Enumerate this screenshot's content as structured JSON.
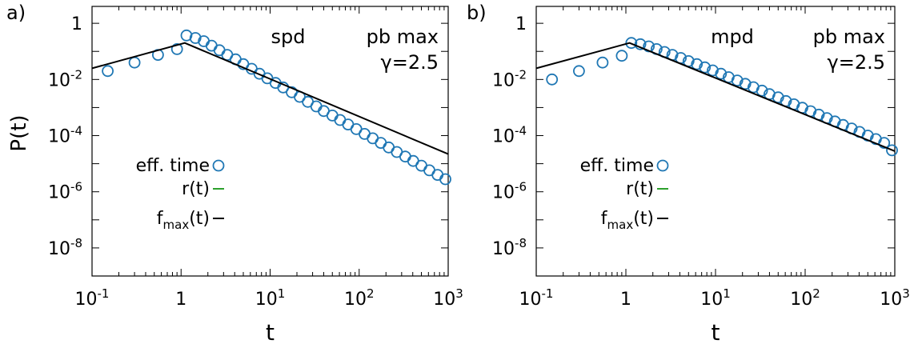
{
  "figure": {
    "panels": [
      {
        "panel_label": "a)",
        "inset_label": "spd",
        "model_label": "pb max",
        "gamma_label": "γ=2.5"
      },
      {
        "panel_label": "b)",
        "inset_label": "mpd",
        "model_label": "pb max",
        "gamma_label": "γ=2.5"
      }
    ]
  },
  "chart_data": [
    {
      "type": "scatter",
      "title": "",
      "xlabel": "t",
      "ylabel": "P(t)",
      "xscale": "log",
      "yscale": "log",
      "xlim": [
        0.1,
        1000
      ],
      "ylim": [
        1e-09,
        4
      ],
      "x_ticks": [
        {
          "base": "10",
          "exp": "-1"
        },
        {
          "base": "1",
          "exp": ""
        },
        {
          "base": "10",
          "exp": "1"
        },
        {
          "base": "10",
          "exp": "2"
        },
        {
          "base": "10",
          "exp": "3"
        }
      ],
      "y_ticks": [
        {
          "base": "1",
          "exp": ""
        },
        {
          "base": "10",
          "exp": "-2"
        },
        {
          "base": "10",
          "exp": "-4"
        },
        {
          "base": "10",
          "exp": "-6"
        },
        {
          "base": "10",
          "exp": "-8"
        }
      ],
      "legend_position": "left",
      "legend": [
        {
          "label": "eff. time",
          "sub": "",
          "rest": "",
          "kind": "circle",
          "color": "#1f77b4"
        },
        {
          "label": "r(t)",
          "sub": "",
          "rest": "",
          "kind": "line",
          "color": "#2ca02c"
        },
        {
          "label": "f",
          "sub": "max",
          "rest": "(t)",
          "kind": "line",
          "color": "#000000"
        }
      ],
      "series": [
        {
          "name": "eff. time",
          "kind": "markers",
          "color": "#1f77b4",
          "x": [
            0.15,
            0.3,
            0.55,
            0.9,
            1.15,
            1.45,
            1.8,
            2.2,
            2.7,
            3.3,
            4.1,
            5.0,
            6.2,
            7.6,
            9.3,
            11.5,
            14,
            17.5,
            21.5,
            26.5,
            33,
            40,
            50,
            61,
            75,
            93,
            115,
            142,
            175,
            215,
            265,
            330,
            405,
            500,
            615,
            760,
            930
          ],
          "y": [
            0.02,
            0.04,
            0.075,
            0.12,
            0.37,
            0.3,
            0.23,
            0.16,
            0.11,
            0.075,
            0.052,
            0.035,
            0.024,
            0.016,
            0.011,
            0.0075,
            0.0052,
            0.0035,
            0.0024,
            0.0016,
            0.0011,
            0.00075,
            0.00052,
            0.00036,
            0.00025,
            0.00017,
            0.000115,
            8e-05,
            5.5e-05,
            3.8e-05,
            2.6e-05,
            1.8e-05,
            1.25e-05,
            8.5e-06,
            5.8e-06,
            4e-06,
            2.8e-06
          ]
        },
        {
          "name": "f",
          "kind": "line",
          "color": "#000000",
          "x": [
            0.1,
            1.1,
            1000
          ],
          "y": [
            0.025,
            0.2,
            2.2e-05
          ]
        }
      ]
    },
    {
      "type": "scatter",
      "title": "",
      "xlabel": "t",
      "ylabel": "",
      "xscale": "log",
      "yscale": "log",
      "xlim": [
        0.1,
        1000
      ],
      "ylim": [
        1e-09,
        4
      ],
      "x_ticks": [
        {
          "base": "10",
          "exp": "-1"
        },
        {
          "base": "1",
          "exp": ""
        },
        {
          "base": "10",
          "exp": "1"
        },
        {
          "base": "10",
          "exp": "2"
        },
        {
          "base": "10",
          "exp": "3"
        }
      ],
      "y_ticks": [
        {
          "base": "1",
          "exp": ""
        },
        {
          "base": "10",
          "exp": "-2"
        },
        {
          "base": "10",
          "exp": "-4"
        },
        {
          "base": "10",
          "exp": "-6"
        },
        {
          "base": "10",
          "exp": "-8"
        }
      ],
      "legend_position": "left",
      "legend": [
        {
          "label": "eff. time",
          "sub": "",
          "rest": "",
          "kind": "circle",
          "color": "#1f77b4"
        },
        {
          "label": "r(t)",
          "sub": "",
          "rest": "",
          "kind": "line",
          "color": "#2ca02c"
        },
        {
          "label": "f",
          "sub": "max",
          "rest": "(t)",
          "kind": "line",
          "color": "#000000"
        }
      ],
      "series": [
        {
          "name": "eff. time",
          "kind": "markers",
          "color": "#1f77b4",
          "x": [
            0.15,
            0.3,
            0.55,
            0.9,
            1.15,
            1.45,
            1.8,
            2.2,
            2.7,
            3.3,
            4.1,
            5.0,
            6.2,
            7.6,
            9.3,
            11.5,
            14,
            17.5,
            21.5,
            26.5,
            33,
            40,
            50,
            61,
            75,
            93,
            115,
            142,
            175,
            215,
            265,
            330,
            405,
            500,
            615,
            760,
            930
          ],
          "y": [
            0.01,
            0.02,
            0.04,
            0.07,
            0.2,
            0.18,
            0.15,
            0.12,
            0.095,
            0.075,
            0.058,
            0.045,
            0.035,
            0.027,
            0.021,
            0.016,
            0.012,
            0.0092,
            0.007,
            0.0053,
            0.004,
            0.003,
            0.0023,
            0.0017,
            0.0013,
            0.00098,
            0.00074,
            0.00056,
            0.00042,
            0.00032,
            0.00024,
            0.00018,
            0.000135,
            0.0001,
            7.5e-05,
            5.5e-05,
            3e-05
          ]
        },
        {
          "name": "f",
          "kind": "line",
          "color": "#000000",
          "x": [
            0.1,
            1.1,
            1000
          ],
          "y": [
            0.025,
            0.2,
            2.8e-05
          ]
        }
      ]
    }
  ]
}
